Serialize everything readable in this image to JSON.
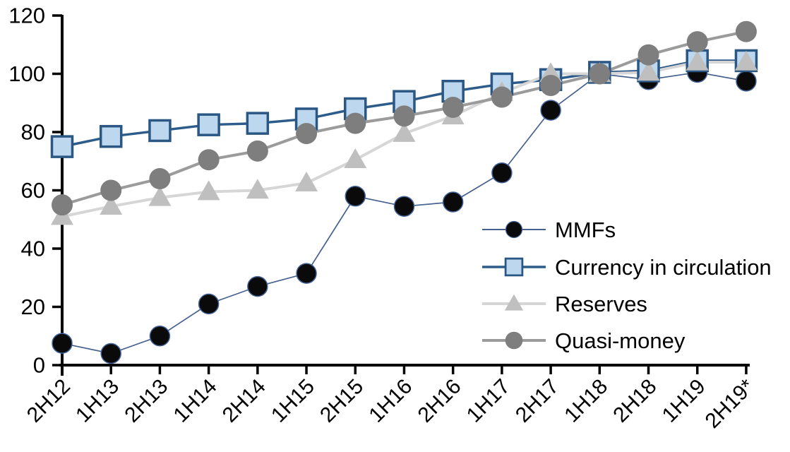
{
  "chart_data": {
    "type": "line",
    "title": "",
    "xlabel": "",
    "ylabel": "",
    "grid": false,
    "axis_color": "#000000",
    "background_color": "#ffffff",
    "categories": [
      "2H12",
      "1H13",
      "2H13",
      "1H14",
      "2H14",
      "1H15",
      "2H15",
      "1H16",
      "2H16",
      "1H17",
      "2H17",
      "1H18",
      "2H18",
      "1H19",
      "2H19*"
    ],
    "series": [
      {
        "name": "MMFs",
        "marker": "circle",
        "marker_fill": "#0a0a0a",
        "marker_stroke": "#44649a",
        "marker_stroke_width": 1.5,
        "marker_size": 14,
        "line_color": "#46618f",
        "line_width": 1.7,
        "values": [
          7.5,
          4,
          10,
          21,
          27,
          31.5,
          58,
          54.5,
          56,
          66,
          87.5,
          100,
          98,
          100.5,
          97.5
        ]
      },
      {
        "name": "Currency in circulation",
        "marker": "square",
        "marker_fill": "#bdd7ee",
        "marker_stroke": "#2a5784",
        "marker_stroke_width": 3.5,
        "marker_size": 14.5,
        "line_color": "#2e5c8a",
        "line_width": 3.5,
        "values": [
          75,
          78.5,
          80.5,
          82.5,
          83,
          84.5,
          88,
          90.5,
          94,
          96.5,
          98,
          100.5,
          101,
          104.5,
          104.5
        ]
      },
      {
        "name": "Reserves",
        "marker": "triangle",
        "marker_fill": "#bfbfbf",
        "marker_stroke": "none",
        "marker_stroke_width": 0,
        "marker_size": 16,
        "line_color": "#d6d6d6",
        "line_width": 4,
        "values": [
          51,
          54.5,
          57.5,
          59.5,
          60,
          62.5,
          70.5,
          79.5,
          85.5,
          93.5,
          100,
          100,
          100.5,
          104,
          104
        ]
      },
      {
        "name": "Quasi-money",
        "marker": "circle",
        "marker_fill": "#7e7e7e",
        "marker_stroke": "none",
        "marker_stroke_width": 0,
        "marker_size": 15,
        "line_color": "#9b9b9b",
        "line_width": 4,
        "values": [
          55,
          60,
          64,
          70.5,
          73.5,
          79.5,
          83,
          85.5,
          88.5,
          92,
          96,
          100,
          106.5,
          111,
          114.5
        ]
      }
    ],
    "yaxis": {
      "min": 0,
      "max": 120,
      "step": 20,
      "tick_labels": [
        "0",
        "20",
        "40",
        "60",
        "80",
        "100",
        "120"
      ]
    },
    "xaxis": {
      "tick_labels_rotation_deg": -45
    },
    "legend": {
      "position": "middle-right",
      "entries": [
        "MMFs",
        "Currency in circulation",
        "Reserves",
        "Quasi-money"
      ]
    }
  }
}
